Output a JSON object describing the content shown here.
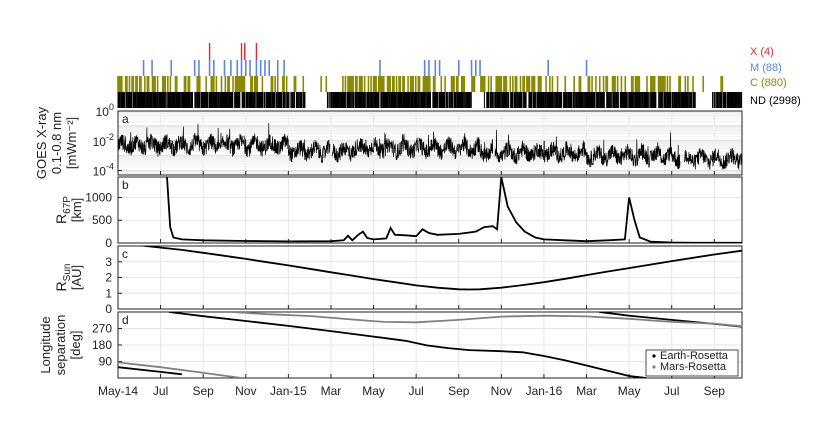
{
  "figure": {
    "x_ticks": [
      "May-14",
      "Jul",
      "Sep",
      "Nov",
      "Jan-15",
      "Mar",
      "May",
      "Jul",
      "Sep",
      "Nov",
      "Jan-16",
      "Mar",
      "May",
      "Jul",
      "Sep"
    ],
    "x_tick_months": [
      0,
      2,
      4,
      6,
      8,
      10,
      12,
      14,
      16,
      18,
      20,
      22,
      24,
      26,
      28
    ],
    "x_range_months": [
      0,
      29.3
    ]
  },
  "flare_legend": [
    {
      "key": "X",
      "label": "X (4)",
      "color": "#e8262b"
    },
    {
      "key": "M",
      "label": "M (88)",
      "color": "#5b86e0"
    },
    {
      "key": "C",
      "label": "C (880)",
      "color": "#8a8a00"
    },
    {
      "key": "ND",
      "label": "ND (2998)",
      "color": "#000000"
    }
  ],
  "chart_data": [
    {
      "type": "line",
      "panel": "a",
      "ylabel": [
        "GOES X-ray",
        "0.1-0.8 nm",
        "[mWm⁻²]"
      ],
      "yscale": "log",
      "ylim": [
        5e-05,
        1
      ],
      "y_ticks": [
        {
          "value": 1,
          "base": "10",
          "exp": "0"
        },
        {
          "value": 0.01,
          "base": "10",
          "exp": "-2"
        },
        {
          "value": 0.0001,
          "base": "10",
          "exp": "-4"
        }
      ],
      "grid": true,
      "color": "#000000",
      "series": [
        {
          "values_description_free": true
        }
      ]
    },
    {
      "type": "line",
      "panel": "b",
      "ylabel": [
        "R",
        "67P",
        "[km]"
      ],
      "ylim": [
        0,
        1450
      ],
      "y_ticks": [
        0,
        500,
        1000
      ],
      "grid": true,
      "color": "#000000",
      "points": [
        [
          2.3,
          1450
        ],
        [
          2.45,
          350
        ],
        [
          2.6,
          120
        ],
        [
          3.0,
          80
        ],
        [
          4,
          60
        ],
        [
          6,
          45
        ],
        [
          8,
          35
        ],
        [
          10,
          40
        ],
        [
          10.6,
          60
        ],
        [
          10.8,
          160
        ],
        [
          11.0,
          60
        ],
        [
          11.3,
          190
        ],
        [
          11.5,
          250
        ],
        [
          11.7,
          110
        ],
        [
          12,
          80
        ],
        [
          12.6,
          100
        ],
        [
          12.8,
          330
        ],
        [
          13.0,
          180
        ],
        [
          13.5,
          170
        ],
        [
          14.0,
          150
        ],
        [
          14.3,
          300
        ],
        [
          14.6,
          220
        ],
        [
          15,
          180
        ],
        [
          16,
          200
        ],
        [
          16.8,
          250
        ],
        [
          17.2,
          350
        ],
        [
          17.6,
          370
        ],
        [
          17.8,
          300
        ],
        [
          18.0,
          1450
        ],
        [
          18.3,
          800
        ],
        [
          18.7,
          450
        ],
        [
          19.1,
          250
        ],
        [
          19.6,
          120
        ],
        [
          20,
          80
        ],
        [
          21,
          60
        ],
        [
          22,
          40
        ],
        [
          23,
          60
        ],
        [
          23.8,
          80
        ],
        [
          24.0,
          1000
        ],
        [
          24.25,
          500
        ],
        [
          24.5,
          120
        ],
        [
          25,
          30
        ],
        [
          26,
          10
        ],
        [
          27,
          5
        ],
        [
          29.3,
          5
        ]
      ]
    },
    {
      "type": "line",
      "panel": "c",
      "ylabel": [
        "R",
        "Sun",
        "[AU]"
      ],
      "ylim": [
        0,
        4.0
      ],
      "y_ticks": [
        0,
        1,
        2,
        3
      ],
      "grid": true,
      "color": "#000000",
      "points": [
        [
          1.0,
          4.05
        ],
        [
          2,
          3.9
        ],
        [
          3,
          3.75
        ],
        [
          4,
          3.57
        ],
        [
          5,
          3.38
        ],
        [
          6,
          3.18
        ],
        [
          7,
          2.97
        ],
        [
          8,
          2.77
        ],
        [
          9,
          2.55
        ],
        [
          10,
          2.33
        ],
        [
          11,
          2.12
        ],
        [
          12,
          1.9
        ],
        [
          13,
          1.7
        ],
        [
          14,
          1.5
        ],
        [
          15,
          1.35
        ],
        [
          16,
          1.25
        ],
        [
          16.5,
          1.24
        ],
        [
          17,
          1.25
        ],
        [
          18,
          1.35
        ],
        [
          19,
          1.52
        ],
        [
          20,
          1.7
        ],
        [
          21,
          1.92
        ],
        [
          22,
          2.15
        ],
        [
          23,
          2.38
        ],
        [
          24,
          2.6
        ],
        [
          25,
          2.82
        ],
        [
          26,
          3.04
        ],
        [
          27,
          3.25
        ],
        [
          28,
          3.46
        ],
        [
          29.3,
          3.7
        ]
      ]
    },
    {
      "type": "line",
      "panel": "d",
      "ylabel": [
        "Longitude",
        "separation",
        "[deg]"
      ],
      "ylim": [
        0,
        360
      ],
      "y_ticks": [
        90,
        180,
        270
      ],
      "grid": true,
      "legend": {
        "placement": "bottom-right",
        "entries": [
          {
            "name": "Earth-Rosetta",
            "color": "#000000"
          },
          {
            "name": "Mars-Rosetta",
            "color": "#808080"
          }
        ]
      },
      "series": [
        {
          "name": "Earth-Rosetta",
          "color": "#000000",
          "segments": [
            [
              [
                0,
                59
              ],
              [
                2,
                33
              ],
              [
                3.0,
                20
              ]
            ],
            [
              [
                2.4,
                360
              ],
              [
                4,
                337
              ],
              [
                6,
                311
              ],
              [
                8,
                284
              ],
              [
                10,
                256
              ],
              [
                12,
                226
              ],
              [
                13.5,
                203
              ],
              [
                14.5,
                178
              ],
              [
                15.5,
                163
              ],
              [
                16.5,
                152
              ],
              [
                18,
                146
              ],
              [
                19,
                140
              ],
              [
                20,
                120
              ],
              [
                21,
                96
              ],
              [
                22,
                68
              ],
              [
                23,
                40
              ],
              [
                24,
                11
              ],
              [
                24.8,
                0
              ]
            ],
            [
              [
                22.6,
                360
              ],
              [
                24,
                340
              ],
              [
                26,
                317
              ],
              [
                28,
                295
              ],
              [
                29.3,
                280
              ]
            ]
          ]
        },
        {
          "name": "Mars-Rosetta",
          "color": "#808080",
          "segments": [
            [
              [
                0,
                85
              ],
              [
                2,
                59
              ],
              [
                3.5,
                36
              ],
              [
                5.8,
                0
              ]
            ],
            [
              [
                5.4,
                360
              ],
              [
                7,
                348
              ],
              [
                9,
                338
              ],
              [
                11,
                319
              ],
              [
                12.5,
                306
              ],
              [
                14,
                304
              ],
              [
                16,
                317
              ],
              [
                18,
                335
              ],
              [
                20,
                340
              ],
              [
                22,
                336
              ],
              [
                24,
                323
              ],
              [
                26,
                306
              ],
              [
                28,
                297
              ],
              [
                29.3,
                282
              ]
            ]
          ]
        }
      ]
    }
  ]
}
